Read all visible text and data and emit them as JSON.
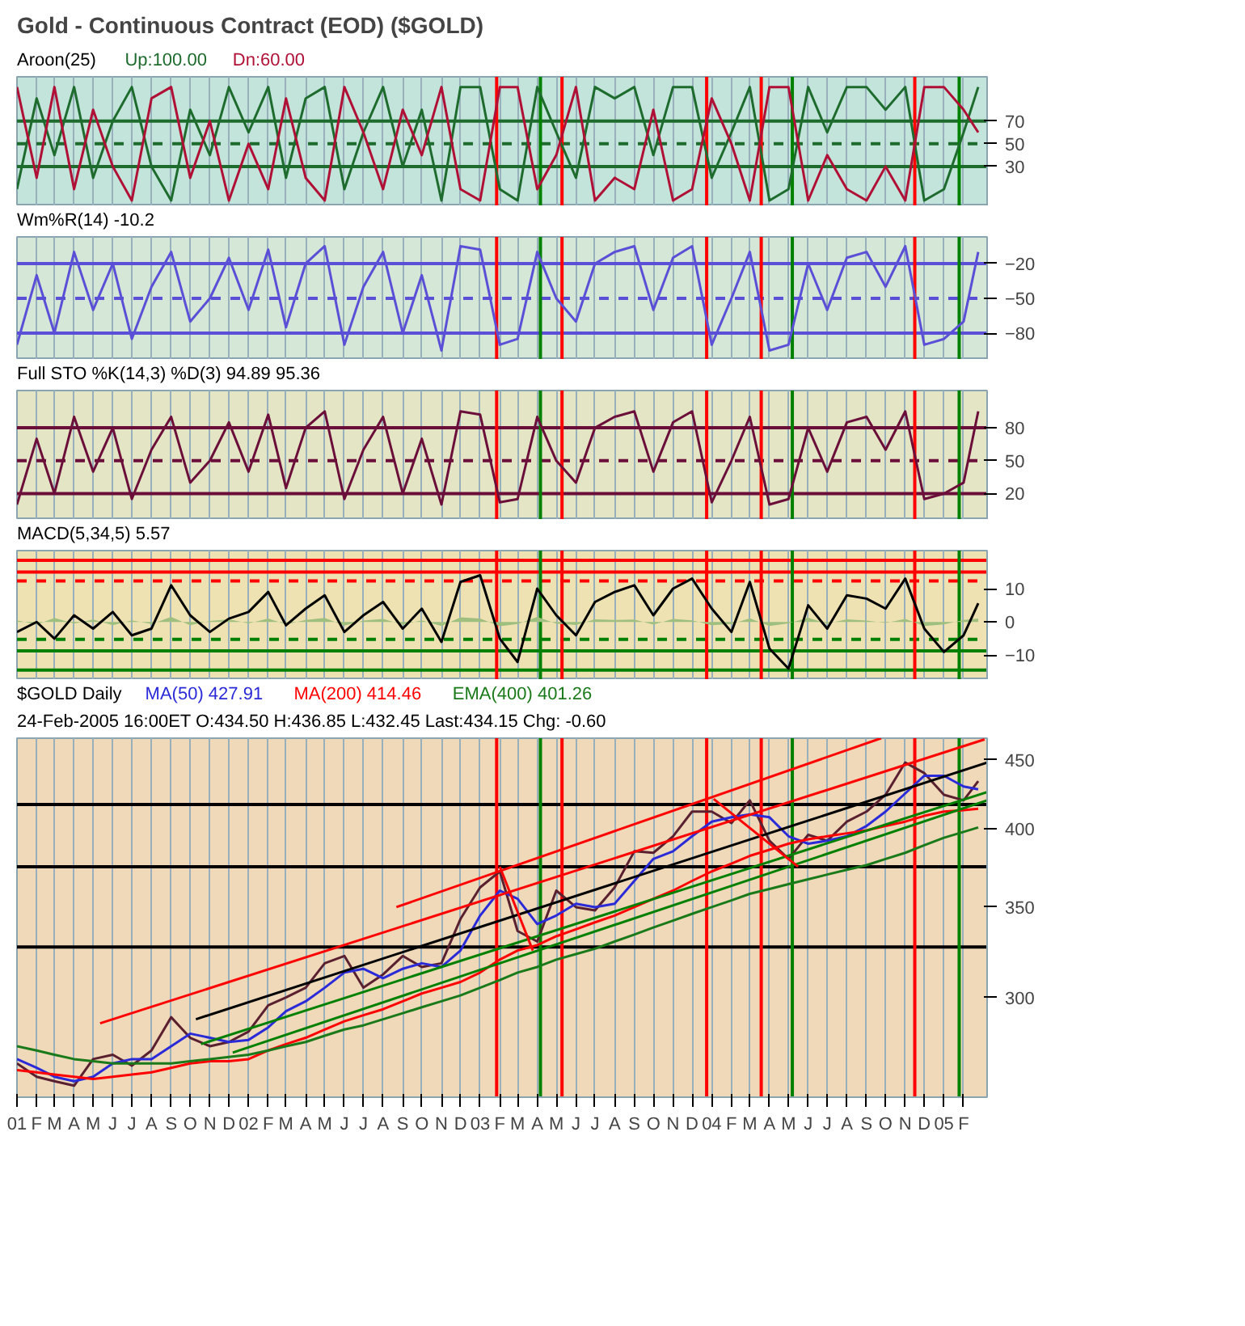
{
  "chart_data": [
    {
      "type": "line",
      "title": "Gold - Continuous Contract (EOD) ($GOLD)",
      "subtitle": "Aroon(25)",
      "x": [
        "2001-01",
        "2001-02",
        "2001-03",
        "2001-04",
        "2001-05",
        "2001-06",
        "2001-07",
        "2001-08",
        "2001-09",
        "2001-10",
        "2001-11",
        "2001-12",
        "2002-01",
        "2002-02",
        "2002-03",
        "2002-04",
        "2002-05",
        "2002-06",
        "2002-07",
        "2002-08",
        "2002-09",
        "2002-10",
        "2002-11",
        "2002-12",
        "2003-01",
        "2003-02",
        "2003-03",
        "2003-04",
        "2003-05",
        "2003-06",
        "2003-07",
        "2003-08",
        "2003-09",
        "2003-10",
        "2003-11",
        "2003-12",
        "2004-01",
        "2004-02",
        "2004-03",
        "2004-04",
        "2004-05",
        "2004-06",
        "2004-07",
        "2004-08",
        "2004-09",
        "2004-10",
        "2004-11",
        "2004-12",
        "2005-01",
        "2005-02",
        "2005-02-24"
      ],
      "series": [
        {
          "name": "Up:100.00",
          "color": "#1e6b2e",
          "values": [
            10,
            90,
            40,
            100,
            20,
            70,
            100,
            30,
            0,
            80,
            40,
            100,
            60,
            100,
            20,
            90,
            100,
            10,
            60,
            100,
            30,
            80,
            0,
            100,
            100,
            10,
            0,
            100,
            60,
            20,
            100,
            90,
            100,
            40,
            100,
            100,
            20,
            60,
            100,
            0,
            10,
            100,
            60,
            100,
            100,
            80,
            100,
            0,
            10,
            60,
            100
          ]
        },
        {
          "name": "Dn:60.00",
          "color": "#b01035",
          "values": [
            100,
            20,
            100,
            10,
            80,
            30,
            0,
            90,
            100,
            20,
            70,
            0,
            50,
            10,
            90,
            20,
            0,
            100,
            60,
            10,
            80,
            40,
            100,
            10,
            0,
            100,
            100,
            10,
            40,
            100,
            0,
            20,
            10,
            80,
            0,
            10,
            90,
            50,
            0,
            100,
            100,
            0,
            40,
            10,
            0,
            30,
            0,
            100,
            100,
            80,
            60
          ]
        }
      ],
      "xlim": [
        "2001-01-01",
        "2005-03-10"
      ],
      "ylim": [
        -5,
        109
      ],
      "yticks": [
        30,
        50,
        70
      ],
      "grid": "x",
      "tick_labels": "y",
      "line_style": "solid",
      "xticks": [
        "2001-01",
        "2001-02",
        "2001-03",
        "2001-04",
        "2001-05",
        "2001-06",
        "2001-07",
        "2001-08",
        "2001-09",
        "2001-10",
        "2001-11",
        "2001-12",
        "2002-01",
        "2002-02",
        "2002-03",
        "2002-04",
        "2002-05",
        "2002-06",
        "2002-07",
        "2002-08",
        "2002-09",
        "2002-10",
        "2002-11",
        "2002-12",
        "2003-01",
        "2003-02",
        "2003-03",
        "2003-04",
        "2003-05",
        "2003-06",
        "2003-07",
        "2003-08",
        "2003-09",
        "2003-10",
        "2003-11",
        "2003-12",
        "2004-01",
        "2004-02",
        "2004-03",
        "2004-04",
        "2004-05",
        "2004-06",
        "2004-07",
        "2004-08",
        "2004-09",
        "2004-10",
        "2004-11",
        "2004-12",
        "2005-01",
        "2005-02"
      ],
      "ref_lines": [
        {
          "axis": "y",
          "value": 70,
          "color": "#1e6b2e",
          "line_style": "solid"
        },
        {
          "axis": "y",
          "value": 50,
          "color": "#1e6b2e",
          "line_style": "dashed"
        },
        {
          "axis": "y",
          "value": 30,
          "color": "#1e6b2e",
          "line_style": "solid"
        },
        {
          "axis": "x",
          "value": "2003-01-27",
          "color": "#ff0000"
        },
        {
          "axis": "x",
          "value": "2003-04-06",
          "color": "#008000"
        },
        {
          "axis": "x",
          "value": "2003-05-10",
          "color": "#ff0000"
        },
        {
          "axis": "x",
          "value": "2003-12-24",
          "color": "#ff0000"
        },
        {
          "axis": "x",
          "value": "2004-03-19",
          "color": "#ff0000"
        },
        {
          "axis": "x",
          "value": "2004-05-07",
          "color": "#008000"
        },
        {
          "axis": "x",
          "value": "2004-11-16",
          "color": "#ff0000"
        },
        {
          "axis": "x",
          "value": "2005-01-25",
          "color": "#008000"
        }
      ]
    },
    {
      "type": "line",
      "title": "Wm%R(14)  -10.2",
      "x": [
        "2001-01",
        "2001-02",
        "2001-03",
        "2001-04",
        "2001-05",
        "2001-06",
        "2001-07",
        "2001-08",
        "2001-09",
        "2001-10",
        "2001-11",
        "2001-12",
        "2002-01",
        "2002-02",
        "2002-03",
        "2002-04",
        "2002-05",
        "2002-06",
        "2002-07",
        "2002-08",
        "2002-09",
        "2002-10",
        "2002-11",
        "2002-12",
        "2003-01",
        "2003-02",
        "2003-03",
        "2003-04",
        "2003-05",
        "2003-06",
        "2003-07",
        "2003-08",
        "2003-09",
        "2003-10",
        "2003-11",
        "2003-12",
        "2004-01",
        "2004-02",
        "2004-03",
        "2004-04",
        "2004-05",
        "2004-06",
        "2004-07",
        "2004-08",
        "2004-09",
        "2004-10",
        "2004-11",
        "2004-12",
        "2005-01",
        "2005-02",
        "2005-02-24"
      ],
      "series": [
        {
          "color": "#5a4fd6",
          "values": [
            -90,
            -30,
            -80,
            -10,
            -60,
            -20,
            -85,
            -40,
            -10,
            -70,
            -50,
            -15,
            -60,
            -8,
            -75,
            -20,
            -5,
            -90,
            -40,
            -10,
            -80,
            -30,
            -95,
            -5,
            -8,
            -90,
            -85,
            -10,
            -50,
            -70,
            -20,
            -10,
            -5,
            -60,
            -15,
            -5,
            -90,
            -50,
            -10,
            -95,
            -90,
            -20,
            -60,
            -15,
            -10,
            -40,
            -5,
            -90,
            -85,
            -70,
            -10
          ]
        }
      ],
      "xlim": [
        "2001-01-01",
        "2005-03-10"
      ],
      "ylim": [
        -103,
        3
      ],
      "yticks": [
        -20,
        -50,
        -80
      ],
      "grid": "x",
      "tick_labels": "y",
      "line_style": "solid",
      "xticks": [
        "2001-01",
        "2001-02",
        "2001-03",
        "2001-04",
        "2001-05",
        "2001-06",
        "2001-07",
        "2001-08",
        "2001-09",
        "2001-10",
        "2001-11",
        "2001-12",
        "2002-01",
        "2002-02",
        "2002-03",
        "2002-04",
        "2002-05",
        "2002-06",
        "2002-07",
        "2002-08",
        "2002-09",
        "2002-10",
        "2002-11",
        "2002-12",
        "2003-01",
        "2003-02",
        "2003-03",
        "2003-04",
        "2003-05",
        "2003-06",
        "2003-07",
        "2003-08",
        "2003-09",
        "2003-10",
        "2003-11",
        "2003-12",
        "2004-01",
        "2004-02",
        "2004-03",
        "2004-04",
        "2004-05",
        "2004-06",
        "2004-07",
        "2004-08",
        "2004-09",
        "2004-10",
        "2004-11",
        "2004-12",
        "2005-01",
        "2005-02"
      ],
      "ref_lines": [
        {
          "axis": "y",
          "value": -20,
          "color": "#5a4fd6",
          "line_style": "solid"
        },
        {
          "axis": "y",
          "value": -50,
          "color": "#5a4fd6",
          "line_style": "dashed"
        },
        {
          "axis": "y",
          "value": -80,
          "color": "#5a4fd6",
          "line_style": "solid"
        },
        {
          "axis": "x",
          "value": "2003-01-27",
          "color": "#ff0000"
        },
        {
          "axis": "x",
          "value": "2003-04-06",
          "color": "#008000"
        },
        {
          "axis": "x",
          "value": "2003-05-10",
          "color": "#ff0000"
        },
        {
          "axis": "x",
          "value": "2003-12-24",
          "color": "#ff0000"
        },
        {
          "axis": "x",
          "value": "2004-03-19",
          "color": "#ff0000"
        },
        {
          "axis": "x",
          "value": "2004-05-07",
          "color": "#008000"
        },
        {
          "axis": "x",
          "value": "2004-11-16",
          "color": "#ff0000"
        },
        {
          "axis": "x",
          "value": "2005-01-25",
          "color": "#008000"
        }
      ]
    },
    {
      "type": "line",
      "title": "Full STO %K(14,3) %D(3)  94.89  95.36",
      "x": [
        "2001-01",
        "2001-02",
        "2001-03",
        "2001-04",
        "2001-05",
        "2001-06",
        "2001-07",
        "2001-08",
        "2001-09",
        "2001-10",
        "2001-11",
        "2001-12",
        "2002-01",
        "2002-02",
        "2002-03",
        "2002-04",
        "2002-05",
        "2002-06",
        "2002-07",
        "2002-08",
        "2002-09",
        "2002-10",
        "2002-11",
        "2002-12",
        "2003-01",
        "2003-02",
        "2003-03",
        "2003-04",
        "2003-05",
        "2003-06",
        "2003-07",
        "2003-08",
        "2003-09",
        "2003-10",
        "2003-11",
        "2003-12",
        "2004-01",
        "2004-02",
        "2004-03",
        "2004-04",
        "2004-05",
        "2004-06",
        "2004-07",
        "2004-08",
        "2004-09",
        "2004-10",
        "2004-11",
        "2004-12",
        "2005-01",
        "2005-02",
        "2005-02-24"
      ],
      "series": [
        {
          "color": "#6b0f3a",
          "values": [
            10,
            70,
            20,
            90,
            40,
            80,
            15,
            60,
            90,
            30,
            50,
            85,
            40,
            92,
            25,
            80,
            95,
            15,
            60,
            90,
            20,
            70,
            10,
            95,
            92,
            12,
            15,
            90,
            50,
            30,
            80,
            90,
            95,
            40,
            85,
            95,
            12,
            50,
            90,
            10,
            15,
            80,
            40,
            85,
            90,
            60,
            95,
            15,
            20,
            30,
            95
          ]
        }
      ],
      "xlim": [
        "2001-01-01",
        "2005-03-10"
      ],
      "ylim": [
        -4,
        114
      ],
      "yticks": [
        20,
        50,
        80
      ],
      "grid": "x",
      "tick_labels": "y",
      "line_style": "solid",
      "xticks": [
        "2001-01",
        "2001-02",
        "2001-03",
        "2001-04",
        "2001-05",
        "2001-06",
        "2001-07",
        "2001-08",
        "2001-09",
        "2001-10",
        "2001-11",
        "2001-12",
        "2002-01",
        "2002-02",
        "2002-03",
        "2002-04",
        "2002-05",
        "2002-06",
        "2002-07",
        "2002-08",
        "2002-09",
        "2002-10",
        "2002-11",
        "2002-12",
        "2003-01",
        "2003-02",
        "2003-03",
        "2003-04",
        "2003-05",
        "2003-06",
        "2003-07",
        "2003-08",
        "2003-09",
        "2003-10",
        "2003-11",
        "2003-12",
        "2004-01",
        "2004-02",
        "2004-03",
        "2004-04",
        "2004-05",
        "2004-06",
        "2004-07",
        "2004-08",
        "2004-09",
        "2004-10",
        "2004-11",
        "2004-12",
        "2005-01",
        "2005-02"
      ],
      "ref_lines": [
        {
          "axis": "y",
          "value": 80,
          "color": "#6b0f3a",
          "line_style": "solid"
        },
        {
          "axis": "y",
          "value": 50,
          "color": "#6b0f3a",
          "line_style": "dashed"
        },
        {
          "axis": "y",
          "value": 20,
          "color": "#6b0f3a",
          "line_style": "solid"
        },
        {
          "axis": "x",
          "value": "2003-01-27",
          "color": "#ff0000"
        },
        {
          "axis": "x",
          "value": "2003-04-06",
          "color": "#008000"
        },
        {
          "axis": "x",
          "value": "2003-05-10",
          "color": "#ff0000"
        },
        {
          "axis": "x",
          "value": "2003-12-24",
          "color": "#ff0000"
        },
        {
          "axis": "x",
          "value": "2004-03-19",
          "color": "#ff0000"
        },
        {
          "axis": "x",
          "value": "2004-05-07",
          "color": "#008000"
        },
        {
          "axis": "x",
          "value": "2004-11-16",
          "color": "#ff0000"
        },
        {
          "axis": "x",
          "value": "2005-01-25",
          "color": "#008000"
        }
      ]
    },
    {
      "type": "line",
      "title": "MACD(5,34,5)  5.57",
      "x": [
        "2001-01",
        "2001-02",
        "2001-03",
        "2001-04",
        "2001-05",
        "2001-06",
        "2001-07",
        "2001-08",
        "2001-09",
        "2001-10",
        "2001-11",
        "2001-12",
        "2002-01",
        "2002-02",
        "2002-03",
        "2002-04",
        "2002-05",
        "2002-06",
        "2002-07",
        "2002-08",
        "2002-09",
        "2002-10",
        "2002-11",
        "2002-12",
        "2003-01",
        "2003-02",
        "2003-03",
        "2003-04",
        "2003-05",
        "2003-06",
        "2003-07",
        "2003-08",
        "2003-09",
        "2003-10",
        "2003-11",
        "2003-12",
        "2004-01",
        "2004-02",
        "2004-03",
        "2004-04",
        "2004-05",
        "2004-06",
        "2004-07",
        "2004-08",
        "2004-09",
        "2004-10",
        "2004-11",
        "2004-12",
        "2005-01",
        "2005-02",
        "2005-02-24"
      ],
      "series": [
        {
          "type": "area",
          "color": "#9fbf7f",
          "values": [
            0.5,
            -0.8,
            1.2,
            -0.5,
            0.7,
            -1.0,
            0.5,
            -0.6,
            1.5,
            -1.0,
            0.3,
            0.8,
            -0.4,
            1.0,
            -0.7,
            0.6,
            1.2,
            -1.1,
            0.4,
            0.9,
            -0.8,
            0.5,
            -1.2,
            1.4,
            1.0,
            -1.3,
            -0.6,
            1.5,
            -0.5,
            -0.9,
            0.8,
            0.6,
            0.7,
            -0.8,
            0.9,
            0.5,
            -1.0,
            -0.6,
            1.1,
            -1.2,
            -0.4,
            1.3,
            -0.5,
            0.8,
            0.4,
            -0.3,
            0.9,
            -1.2,
            -0.7,
            0.6,
            1.0
          ]
        },
        {
          "color": "#000000",
          "values": [
            -3,
            0,
            -5,
            2,
            -2,
            3,
            -4,
            -2,
            11,
            2,
            -3,
            1,
            3,
            9,
            -1,
            4,
            8,
            -3,
            2,
            6,
            -2,
            4,
            -6,
            12,
            14,
            -5,
            -12,
            10,
            2,
            -4,
            6,
            9,
            11,
            2,
            10,
            13,
            4,
            -3,
            12,
            -8,
            -14,
            5,
            -2,
            8,
            7,
            4,
            13,
            -2,
            -9,
            -4,
            5.6
          ]
        }
      ],
      "xlim": [
        "2001-01-01",
        "2005-03-10"
      ],
      "ylim": [
        -17.4,
        21.4
      ],
      "yticks": [
        -10,
        0,
        10
      ],
      "grid": "x",
      "tick_labels": "y",
      "line_style": "solid",
      "xticks": [
        "2001-01",
        "2001-02",
        "2001-03",
        "2001-04",
        "2001-05",
        "2001-06",
        "2001-07",
        "2001-08",
        "2001-09",
        "2001-10",
        "2001-11",
        "2001-12",
        "2002-01",
        "2002-02",
        "2002-03",
        "2002-04",
        "2002-05",
        "2002-06",
        "2002-07",
        "2002-08",
        "2002-09",
        "2002-10",
        "2002-11",
        "2002-12",
        "2003-01",
        "2003-02",
        "2003-03",
        "2003-04",
        "2003-05",
        "2003-06",
        "2003-07",
        "2003-08",
        "2003-09",
        "2003-10",
        "2003-11",
        "2003-12",
        "2004-01",
        "2004-02",
        "2004-03",
        "2004-04",
        "2004-05",
        "2004-06",
        "2004-07",
        "2004-08",
        "2004-09",
        "2004-10",
        "2004-11",
        "2004-12",
        "2005-01",
        "2005-02"
      ],
      "ref_lines": [
        {
          "axis": "y",
          "value": 18.5,
          "color": "#ff0000",
          "line_style": "solid"
        },
        {
          "axis": "y",
          "value": 15,
          "color": "#ff0000",
          "line_style": "solid"
        },
        {
          "axis": "y",
          "value": 12.3,
          "color": "#ff0000",
          "line_style": "dashed"
        },
        {
          "axis": "y",
          "value": -5.2,
          "color": "#008000",
          "line_style": "dashed"
        },
        {
          "axis": "y",
          "value": -8.7,
          "color": "#008000",
          "line_style": "solid"
        },
        {
          "axis": "y",
          "value": -14.4,
          "color": "#008000",
          "line_style": "solid"
        },
        {
          "axis": "x",
          "value": "2003-01-27",
          "color": "#ff0000"
        },
        {
          "axis": "x",
          "value": "2003-04-06",
          "color": "#008000"
        },
        {
          "axis": "x",
          "value": "2003-05-10",
          "color": "#ff0000"
        },
        {
          "axis": "x",
          "value": "2003-12-24",
          "color": "#ff0000"
        },
        {
          "axis": "x",
          "value": "2004-03-19",
          "color": "#ff0000"
        },
        {
          "axis": "x",
          "value": "2004-05-07",
          "color": "#008000"
        },
        {
          "axis": "x",
          "value": "2004-11-16",
          "color": "#ff0000"
        },
        {
          "axis": "x",
          "value": "2005-01-25",
          "color": "#008000"
        }
      ]
    },
    {
      "type": "line",
      "title": "$GOLD Daily",
      "subtitle": "24-Feb-2005 16:00ET  O:434.50  H:436.85  L:432.45  Last:434.15  Chg: -0.60",
      "log": true,
      "x": [
        "2001-01",
        "2001-02",
        "2001-03",
        "2001-04",
        "2001-05",
        "2001-06",
        "2001-07",
        "2001-08",
        "2001-09",
        "2001-10",
        "2001-11",
        "2001-12",
        "2002-01",
        "2002-02",
        "2002-03",
        "2002-04",
        "2002-05",
        "2002-06",
        "2002-07",
        "2002-08",
        "2002-09",
        "2002-10",
        "2002-11",
        "2002-12",
        "2003-01",
        "2003-02",
        "2003-03",
        "2003-04",
        "2003-05",
        "2003-06",
        "2003-07",
        "2003-08",
        "2003-09",
        "2003-10",
        "2003-11",
        "2003-12",
        "2004-01",
        "2004-02",
        "2004-03",
        "2004-04",
        "2004-05",
        "2004-06",
        "2004-07",
        "2004-08",
        "2004-09",
        "2004-10",
        "2004-11",
        "2004-12",
        "2005-01",
        "2005-02",
        "2005-02-24"
      ],
      "series": [
        {
          "color": "#5a2030",
          "values": [
            268,
            262,
            260,
            258,
            270,
            272,
            267,
            274,
            290,
            280,
            276,
            278,
            283,
            296,
            300,
            305,
            318,
            322,
            305,
            312,
            322,
            316,
            318,
            343,
            362,
            372,
            336,
            330,
            360,
            350,
            348,
            362,
            385,
            384,
            395,
            412,
            412,
            404,
            420,
            392,
            380,
            396,
            392,
            405,
            412,
            424,
            448,
            440,
            424,
            420,
            434
          ]
        },
        {
          "name": "MA(50) 427.91",
          "color": "#2a2ad8",
          "values": [
            270,
            266,
            262,
            260,
            262,
            268,
            270,
            270,
            276,
            282,
            280,
            278,
            279,
            285,
            293,
            298,
            305,
            313,
            315,
            310,
            315,
            318,
            316,
            325,
            345,
            360,
            355,
            340,
            345,
            352,
            350,
            352,
            366,
            380,
            385,
            395,
            405,
            408,
            410,
            408,
            395,
            390,
            392,
            395,
            402,
            412,
            425,
            438,
            438,
            430,
            428
          ]
        },
        {
          "name": "MA(200) 414.46",
          "color": "#ff0000",
          "values": [
            265,
            264,
            263,
            262,
            261,
            262,
            263,
            264,
            266,
            268,
            269,
            269,
            270,
            274,
            277,
            280,
            284,
            288,
            291,
            294,
            298,
            302,
            305,
            308,
            313,
            320,
            325,
            328,
            333,
            337,
            341,
            345,
            350,
            355,
            360,
            366,
            372,
            377,
            382,
            386,
            390,
            393,
            395,
            397,
            399,
            402,
            405,
            409,
            412,
            413,
            414
          ]
        },
        {
          "name": "EMA(400) 401.26",
          "color": "#1a7a1a",
          "values": [
            276,
            274,
            272,
            270,
            269,
            268,
            268,
            268,
            268,
            269,
            270,
            271,
            272,
            274,
            276,
            278,
            281,
            284,
            286,
            289,
            292,
            295,
            298,
            301,
            305,
            309,
            313,
            316,
            320,
            323,
            326,
            330,
            334,
            338,
            342,
            346,
            350,
            354,
            358,
            361,
            364,
            367,
            370,
            373,
            376,
            380,
            384,
            389,
            394,
            398,
            401
          ]
        },
        {
          "color": "#ff0000",
          "x": [
            "2002-08-22",
            "2004-09-24"
          ],
          "values": [
            350,
            467
          ]
        },
        {
          "color": "#ff0000",
          "x": [
            "2001-05-12",
            "2005-03-06"
          ],
          "values": [
            287,
            466
          ]
        },
        {
          "color": "#000000",
          "x": [
            "2001-10-10",
            "2005-03-10"
          ],
          "values": [
            289,
            448
          ]
        },
        {
          "color": "#008000",
          "x": [
            "2001-10-18",
            "2005-03-10"
          ],
          "values": [
            277,
            426
          ]
        },
        {
          "color": "#008000",
          "x": [
            "2001-12-07",
            "2005-03-10"
          ],
          "values": [
            273,
            420
          ]
        },
        {
          "color": "#ff0000",
          "x": [
            "2003-02-01",
            "2003-03-25"
          ],
          "values": [
            375,
            325
          ]
        },
        {
          "color": "#ff0000",
          "x": [
            "2004-01-04",
            "2004-05-16"
          ],
          "values": [
            421,
            375
          ]
        }
      ],
      "xlim": [
        "2001-01-01",
        "2005-03-10"
      ],
      "ylim": [
        253,
        467
      ],
      "yticks": [
        300,
        350,
        400,
        450
      ],
      "grid": "x",
      "line_style": "solid",
      "xticks": [
        {
          "value": "2001-01",
          "label": "01"
        },
        {
          "value": "2001-02",
          "label": "F"
        },
        {
          "value": "2001-03",
          "label": "M"
        },
        {
          "value": "2001-04",
          "label": "A"
        },
        {
          "value": "2001-05",
          "label": "M"
        },
        {
          "value": "2001-06",
          "label": "J"
        },
        {
          "value": "2001-07",
          "label": "J"
        },
        {
          "value": "2001-08",
          "label": "A"
        },
        {
          "value": "2001-09",
          "label": "S"
        },
        {
          "value": "2001-10",
          "label": "O"
        },
        {
          "value": "2001-11",
          "label": "N"
        },
        {
          "value": "2001-12",
          "label": "D"
        },
        {
          "value": "2002-01",
          "label": "02"
        },
        {
          "value": "2002-02",
          "label": "F"
        },
        {
          "value": "2002-03",
          "label": "M"
        },
        {
          "value": "2002-04",
          "label": "A"
        },
        {
          "value": "2002-05",
          "label": "M"
        },
        {
          "value": "2002-06",
          "label": "J"
        },
        {
          "value": "2002-07",
          "label": "J"
        },
        {
          "value": "2002-08",
          "label": "A"
        },
        {
          "value": "2002-09",
          "label": "S"
        },
        {
          "value": "2002-10",
          "label": "O"
        },
        {
          "value": "2002-11",
          "label": "N"
        },
        {
          "value": "2002-12",
          "label": "D"
        },
        {
          "value": "2003-01",
          "label": "03"
        },
        {
          "value": "2003-02",
          "label": "F"
        },
        {
          "value": "2003-03",
          "label": "M"
        },
        {
          "value": "2003-04",
          "label": "A"
        },
        {
          "value": "2003-05",
          "label": "M"
        },
        {
          "value": "2003-06",
          "label": "J"
        },
        {
          "value": "2003-07",
          "label": "J"
        },
        {
          "value": "2003-08",
          "label": "A"
        },
        {
          "value": "2003-09",
          "label": "S"
        },
        {
          "value": "2003-10",
          "label": "O"
        },
        {
          "value": "2003-11",
          "label": "N"
        },
        {
          "value": "2003-12",
          "label": "D"
        },
        {
          "value": "2004-01",
          "label": "04"
        },
        {
          "value": "2004-02",
          "label": "F"
        },
        {
          "value": "2004-03",
          "label": "M"
        },
        {
          "value": "2004-04",
          "label": "A"
        },
        {
          "value": "2004-05",
          "label": "M"
        },
        {
          "value": "2004-06",
          "label": "J"
        },
        {
          "value": "2004-07",
          "label": "J"
        },
        {
          "value": "2004-08",
          "label": "A"
        },
        {
          "value": "2004-09",
          "label": "S"
        },
        {
          "value": "2004-10",
          "label": "O"
        },
        {
          "value": "2004-11",
          "label": "N"
        },
        {
          "value": "2004-12",
          "label": "D"
        },
        {
          "value": "2005-01",
          "label": "05"
        },
        {
          "value": "2005-02",
          "label": "F"
        }
      ],
      "ref_lines": [
        {
          "axis": "y",
          "value": 417,
          "color": "#000000",
          "line_style": "solid"
        },
        {
          "axis": "y",
          "value": 375,
          "color": "#000000",
          "line_style": "solid"
        },
        {
          "axis": "y",
          "value": 327,
          "color": "#000000",
          "line_style": "solid"
        },
        {
          "axis": "x",
          "value": "2003-01-27",
          "color": "#ff0000"
        },
        {
          "axis": "x",
          "value": "2003-04-06",
          "color": "#008000"
        },
        {
          "axis": "x",
          "value": "2003-05-10",
          "color": "#ff0000"
        },
        {
          "axis": "x",
          "value": "2003-12-24",
          "color": "#ff0000"
        },
        {
          "axis": "x",
          "value": "2004-03-19",
          "color": "#ff0000"
        },
        {
          "axis": "x",
          "value": "2004-05-07",
          "color": "#008000"
        },
        {
          "axis": "x",
          "value": "2004-11-16",
          "color": "#ff0000"
        },
        {
          "axis": "x",
          "value": "2005-01-25",
          "color": "#008000"
        }
      ]
    }
  ]
}
